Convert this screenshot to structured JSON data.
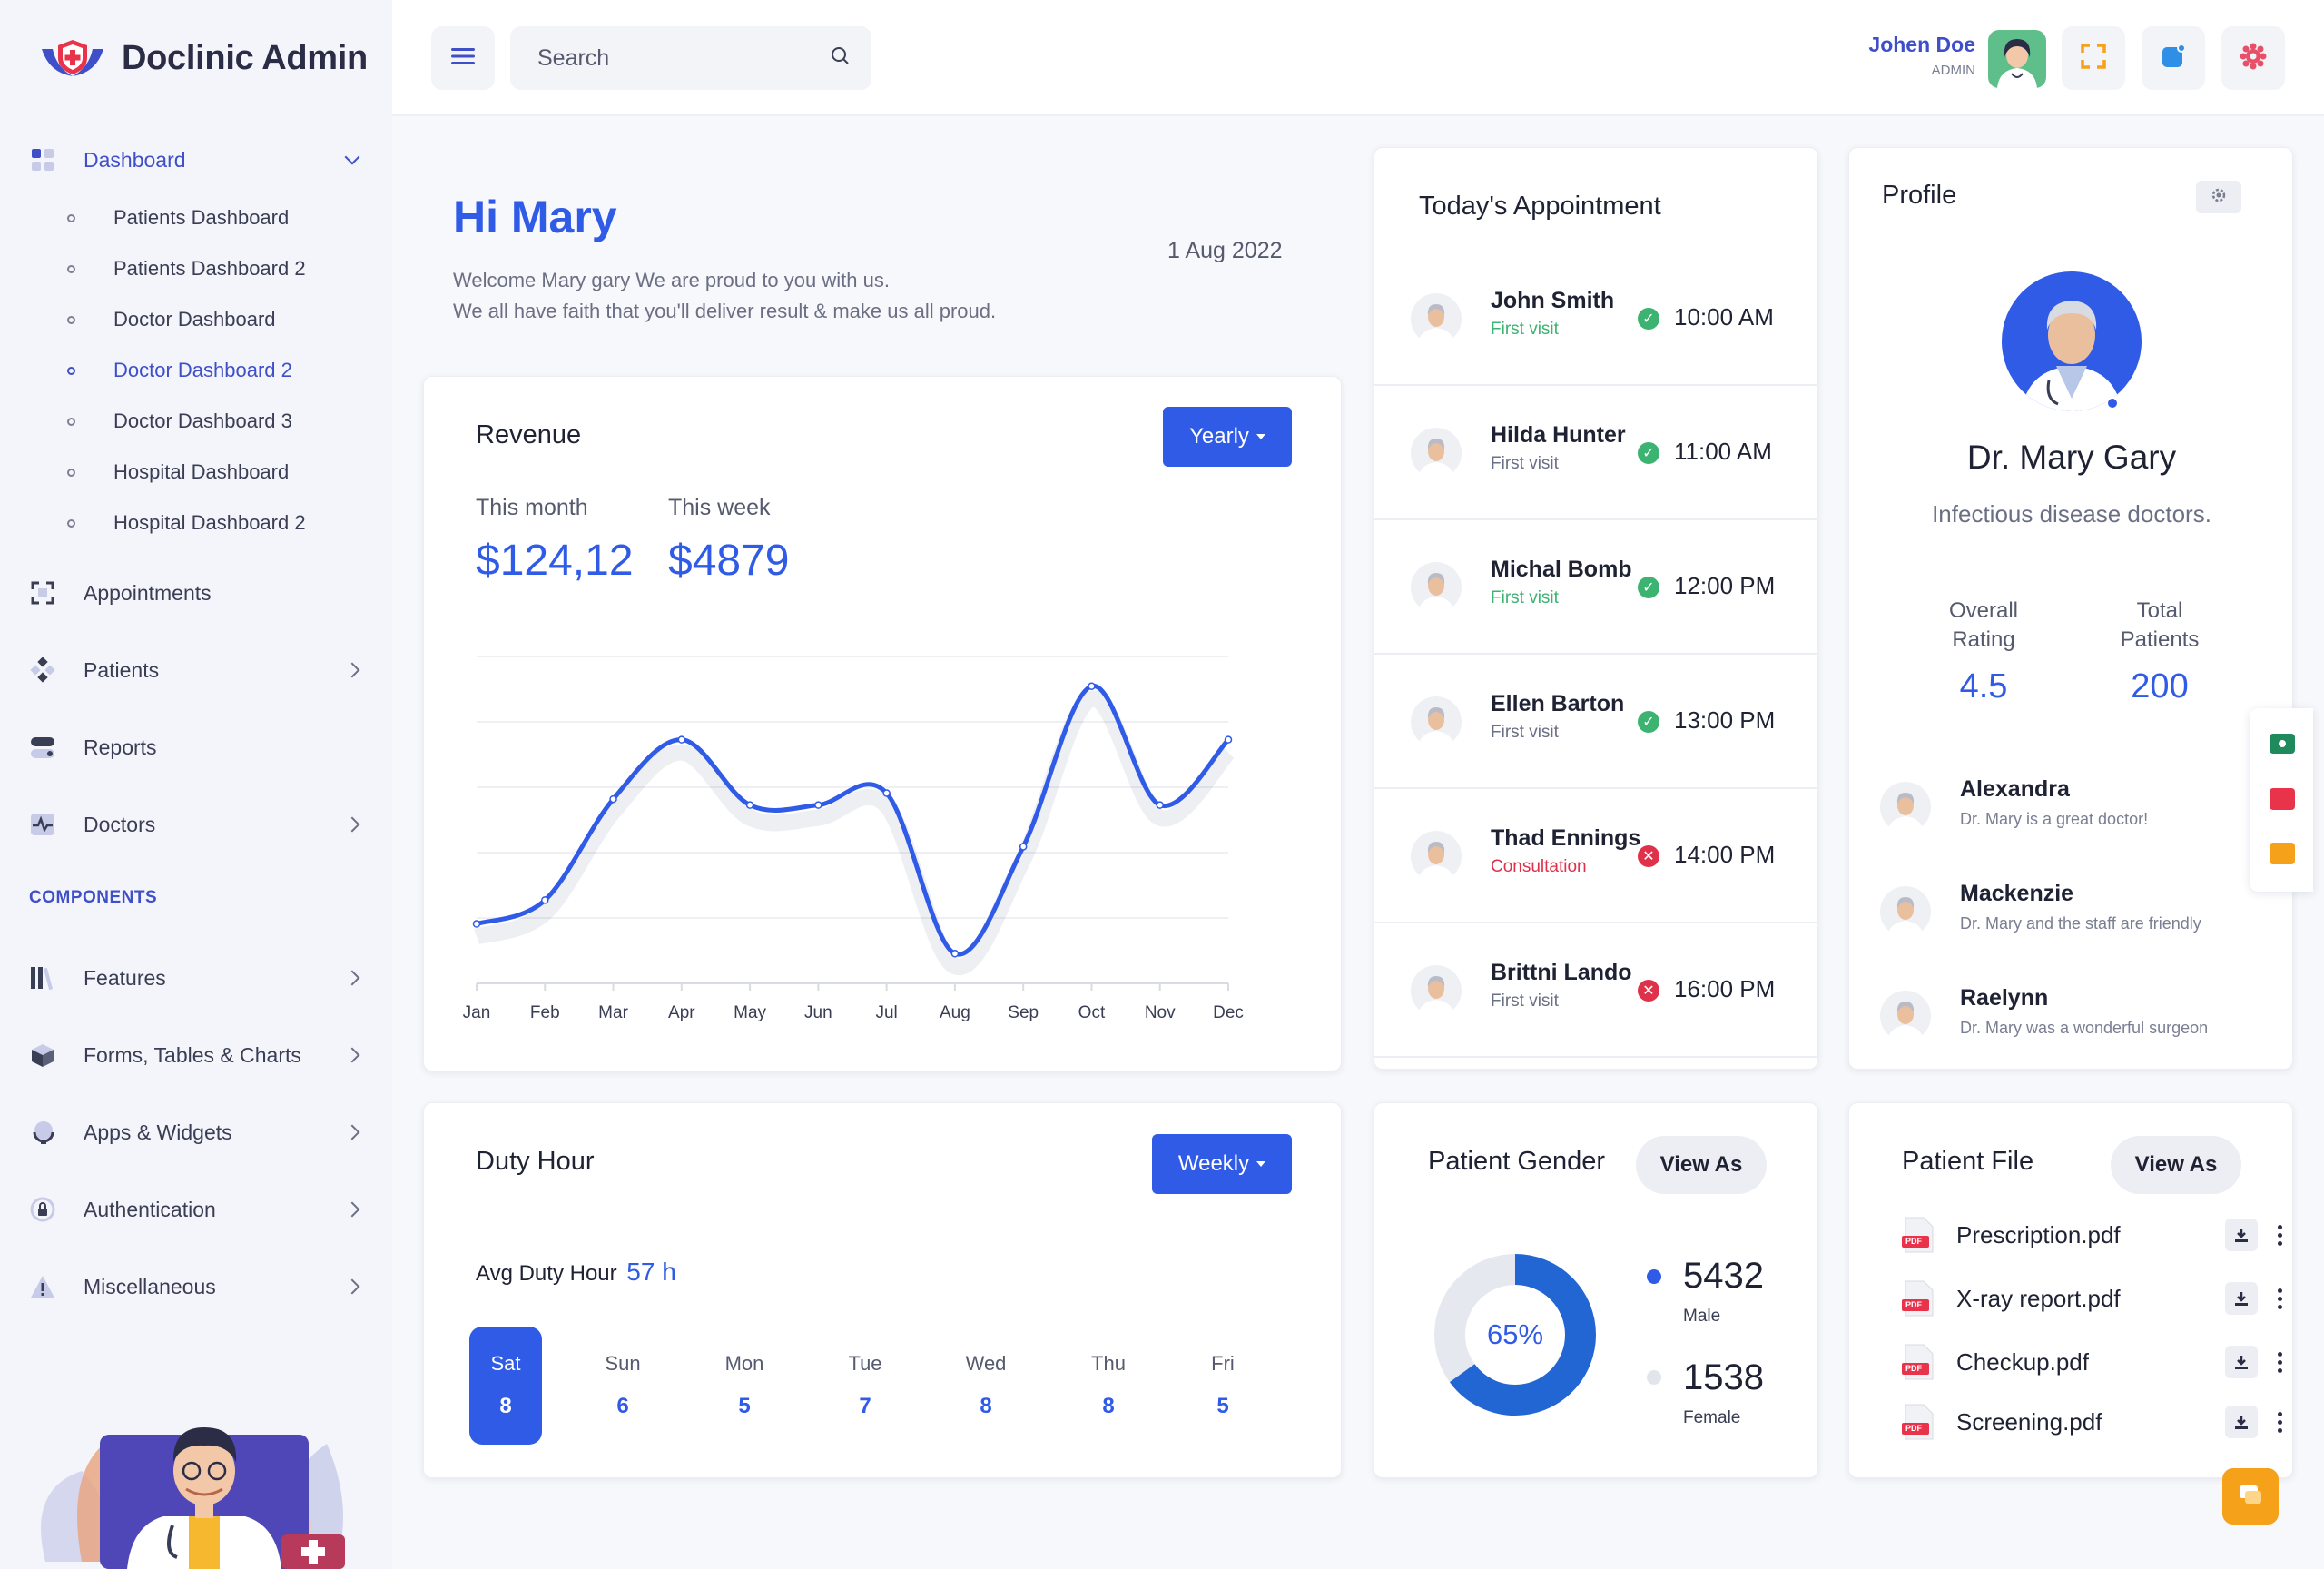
{
  "brand": {
    "name": "Doclinic Admin"
  },
  "colors": {
    "primary": "#2f5be7",
    "active_nav": "#3f4fc9",
    "success": "#3cb371",
    "danger": "#e0314b",
    "accent": "#f6a11a"
  },
  "sidebar": {
    "dashboard": {
      "label": "Dashboard",
      "icon": "grid-icon"
    },
    "sub_items": [
      {
        "label": "Patients Dashboard"
      },
      {
        "label": "Patients Dashboard 2"
      },
      {
        "label": "Doctor Dashboard"
      },
      {
        "label": "Doctor Dashboard 2",
        "active": true
      },
      {
        "label": "Doctor Dashboard 3"
      },
      {
        "label": "Hospital Dashboard"
      },
      {
        "label": "Hospital Dashboard 2"
      }
    ],
    "items": [
      {
        "label": "Appointments",
        "icon": "scan-icon"
      },
      {
        "label": "Patients",
        "icon": "diamond-icon"
      },
      {
        "label": "Reports",
        "icon": "toggle-icon"
      },
      {
        "label": "Doctors",
        "icon": "pulse-icon"
      }
    ],
    "section_label": "COMPONENTS",
    "component_items": [
      {
        "label": "Features",
        "icon": "books-icon"
      },
      {
        "label": "Forms, Tables & Charts",
        "icon": "box-icon"
      },
      {
        "label": "Apps & Widgets",
        "icon": "globe-icon"
      },
      {
        "label": "Authentication",
        "icon": "lock-icon"
      },
      {
        "label": "Miscellaneous",
        "icon": "warning-icon"
      }
    ]
  },
  "topbar": {
    "search_placeholder": "Search",
    "user_name": "Johen Doe",
    "user_role": "ADMIN"
  },
  "greeting": {
    "title": "Hi Mary",
    "line1": "Welcome Mary gary We are proud to you with us.",
    "line2": "We all have faith that you'll deliver result & make us all proud.",
    "date": "1 Aug 2022"
  },
  "revenue": {
    "title": "Revenue",
    "period_button": "Yearly",
    "this_month_label": "This month",
    "this_month_value": "$124,12",
    "this_week_label": "This week",
    "this_week_value": "$4879"
  },
  "chart_data": {
    "type": "line",
    "title": "Revenue",
    "categories": [
      "Jan",
      "Feb",
      "Mar",
      "Apr",
      "May",
      "Jun",
      "Jul",
      "Aug",
      "Sep",
      "Oct",
      "Nov",
      "Dec"
    ],
    "series": [
      {
        "values": [
          10,
          14,
          31,
          41,
          30,
          30,
          32,
          5,
          23,
          50,
          30,
          41
        ]
      }
    ],
    "ylim": [
      0,
      55
    ],
    "grid": true,
    "legend": "none"
  },
  "duty": {
    "title": "Duty Hour",
    "period_button": "Weekly",
    "avg_label": "Avg Duty Hour",
    "avg_value": "57 h",
    "days": [
      {
        "name": "Sat",
        "value": "8",
        "selected": true
      },
      {
        "name": "Sun",
        "value": "6"
      },
      {
        "name": "Mon",
        "value": "5"
      },
      {
        "name": "Tue",
        "value": "7"
      },
      {
        "name": "Wed",
        "value": "8"
      },
      {
        "name": "Thu",
        "value": "8"
      },
      {
        "name": "Fri",
        "value": "5"
      }
    ]
  },
  "appointments": {
    "title": "Today's Appointment",
    "rows": [
      {
        "name": "John Smith",
        "type": "First visit",
        "type_color": "green",
        "status": "confirmed",
        "time": "10:00 AM"
      },
      {
        "name": "Hilda Hunter",
        "type": "First visit",
        "type_color": "gray",
        "status": "confirmed",
        "time": "11:00 AM"
      },
      {
        "name": "Michal Bomb",
        "type": "First visit",
        "type_color": "green",
        "status": "confirmed",
        "time": "12:00 PM"
      },
      {
        "name": "Ellen Barton",
        "type": "First visit",
        "type_color": "gray",
        "status": "confirmed",
        "time": "13:00 PM"
      },
      {
        "name": "Thad Ennings",
        "type": "Consultation",
        "type_color": "red",
        "status": "cancelled",
        "time": "14:00 PM"
      },
      {
        "name": "Brittni Lando",
        "type": "First visit",
        "type_color": "gray",
        "status": "cancelled",
        "time": "16:00 PM"
      }
    ]
  },
  "profile": {
    "title": "Profile",
    "name": "Dr. Mary Gary",
    "specialty": "Infectious disease doctors.",
    "rating_label_1": "Overall",
    "rating_label_2": "Rating",
    "rating_value": "4.5",
    "patients_label_1": "Total",
    "patients_label_2": "Patients",
    "patients_value": "200",
    "reviews": [
      {
        "name": "Alexandra",
        "text": "Dr. Mary is a great doctor!"
      },
      {
        "name": "Mackenzie",
        "text": "Dr. Mary and the staff are friendly"
      },
      {
        "name": "Raelynn",
        "text": "Dr. Mary was a wonderful surgeon"
      }
    ]
  },
  "gender": {
    "title": "Patient Gender",
    "button": "View As",
    "percent_label": "65%",
    "percent_value": 65,
    "male_value": "5432",
    "male_label": "Male",
    "female_value": "1538",
    "female_label": "Female"
  },
  "files": {
    "title": "Patient File",
    "button": "View As",
    "items": [
      {
        "name": "Prescription.pdf"
      },
      {
        "name": "X-ray report.pdf"
      },
      {
        "name": "Checkup.pdf"
      },
      {
        "name": "Screening.pdf"
      }
    ],
    "pdf_badge": "PDF"
  }
}
